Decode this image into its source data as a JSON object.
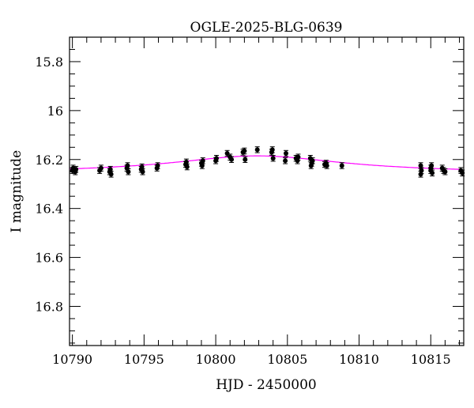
{
  "chart_data": {
    "type": "scatter",
    "title": "OGLE-2025-BLG-0639",
    "xlabel": "HJD - 2450000",
    "ylabel": "I magnitude",
    "xlim": [
      10789.8,
      10817.3
    ],
    "ylim": [
      16.96,
      15.7
    ],
    "y_inverted": true,
    "xticks": [
      10790,
      10795,
      10800,
      10805,
      10810,
      10815
    ],
    "xtick_labels": [
      "10790",
      "10795",
      "10800",
      "10805",
      "10810",
      "10815"
    ],
    "yticks": [
      15.8,
      16,
      16.2,
      16.4,
      16.6,
      16.8
    ],
    "ytick_labels": [
      "15.8",
      "16",
      "16.2",
      "16.4",
      "16.6",
      "16.8"
    ],
    "grid": false,
    "series": [
      {
        "name": "data",
        "color": "#000000",
        "points": [
          [
            10790.0,
            16.245,
            0.012
          ],
          [
            10790.05,
            16.235,
            0.012
          ],
          [
            10790.2,
            16.25,
            0.012
          ],
          [
            10790.25,
            16.24,
            0.012
          ],
          [
            10791.9,
            16.245,
            0.012
          ],
          [
            10792.0,
            16.235,
            0.012
          ],
          [
            10792.6,
            16.25,
            0.012
          ],
          [
            10792.65,
            16.24,
            0.012
          ],
          [
            10792.7,
            16.26,
            0.012
          ],
          [
            10793.8,
            16.235,
            0.012
          ],
          [
            10793.85,
            16.225,
            0.012
          ],
          [
            10793.9,
            16.25,
            0.012
          ],
          [
            10794.8,
            16.24,
            0.012
          ],
          [
            10794.85,
            16.23,
            0.012
          ],
          [
            10794.9,
            16.25,
            0.012
          ],
          [
            10795.9,
            16.235,
            0.012
          ],
          [
            10795.95,
            16.225,
            0.012
          ],
          [
            10797.9,
            16.22,
            0.012
          ],
          [
            10797.95,
            16.21,
            0.012
          ],
          [
            10798.0,
            16.23,
            0.012
          ],
          [
            10799.0,
            16.215,
            0.012
          ],
          [
            10799.05,
            16.225,
            0.012
          ],
          [
            10799.1,
            16.205,
            0.012
          ],
          [
            10800.0,
            16.205,
            0.012
          ],
          [
            10800.05,
            16.195,
            0.012
          ],
          [
            10800.8,
            16.175,
            0.012
          ],
          [
            10801.0,
            16.19,
            0.012
          ],
          [
            10801.1,
            16.2,
            0.012
          ],
          [
            10801.9,
            16.17,
            0.012
          ],
          [
            10802.0,
            16.165,
            0.012
          ],
          [
            10802.05,
            16.2,
            0.012
          ],
          [
            10802.9,
            16.16,
            0.012
          ],
          [
            10803.9,
            16.17,
            0.012
          ],
          [
            10804.0,
            16.195,
            0.012
          ],
          [
            10803.95,
            16.16,
            0.012
          ],
          [
            10804.9,
            16.175,
            0.012
          ],
          [
            10804.85,
            16.205,
            0.012
          ],
          [
            10805.6,
            16.195,
            0.012
          ],
          [
            10805.7,
            16.205,
            0.012
          ],
          [
            10805.75,
            16.19,
            0.012
          ],
          [
            10806.6,
            16.195,
            0.012
          ],
          [
            10806.7,
            16.215,
            0.012
          ],
          [
            10806.75,
            16.205,
            0.012
          ],
          [
            10806.65,
            16.225,
            0.012
          ],
          [
            10807.6,
            16.22,
            0.012
          ],
          [
            10807.7,
            16.215,
            0.012
          ],
          [
            10807.75,
            16.225,
            0.012
          ],
          [
            10808.8,
            16.225,
            0.012
          ],
          [
            10814.3,
            16.225,
            0.012
          ],
          [
            10814.35,
            16.245,
            0.012
          ],
          [
            10814.3,
            16.26,
            0.012
          ],
          [
            10815.0,
            16.235,
            0.012
          ],
          [
            10815.05,
            16.225,
            0.012
          ],
          [
            10815.1,
            16.255,
            0.012
          ],
          [
            10815.0,
            16.245,
            0.012
          ],
          [
            10815.8,
            16.235,
            0.012
          ],
          [
            10815.9,
            16.245,
            0.012
          ],
          [
            10816.0,
            16.25,
            0.012
          ],
          [
            10817.1,
            16.245,
            0.012
          ],
          [
            10817.2,
            16.255,
            0.012
          ]
        ]
      },
      {
        "name": "model",
        "color": "#ff00ff",
        "baseline": 16.255,
        "peak_mag": 16.185,
        "t0": 10802.9,
        "width": 7.0
      }
    ]
  }
}
